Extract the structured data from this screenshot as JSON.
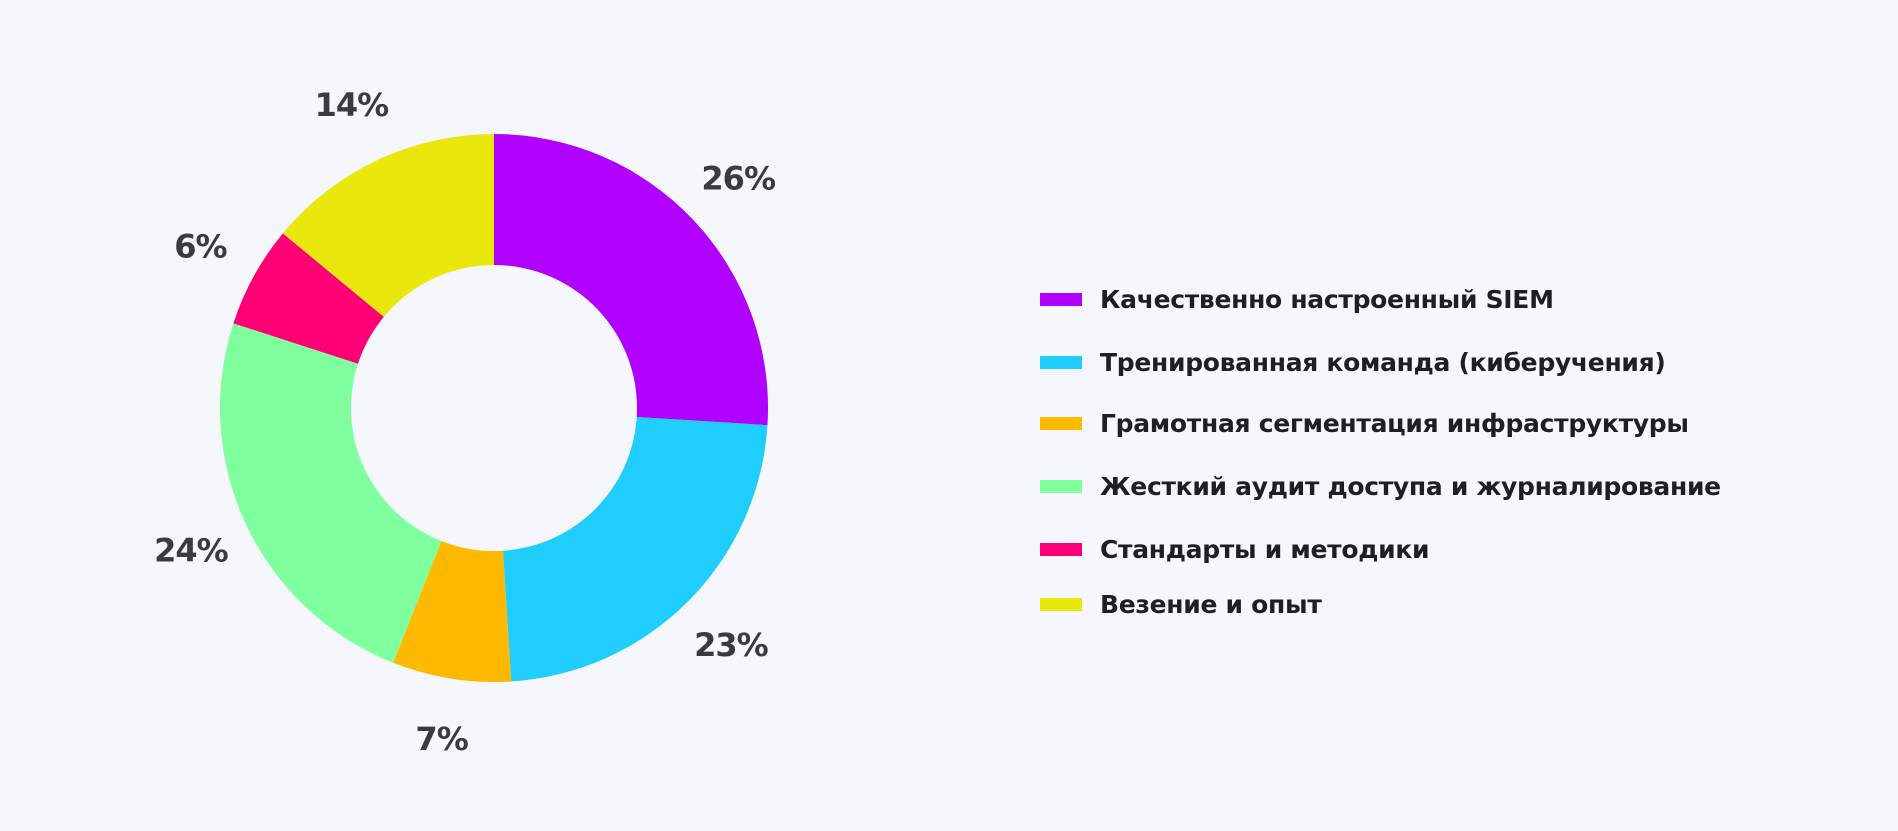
{
  "chart_data": {
    "type": "pie",
    "variant": "donut",
    "legend_position": "right",
    "slices": [
      {
        "label": "Качественно настроенный SIEM",
        "value": 26,
        "value_label": "26%",
        "color": "#b000ff"
      },
      {
        "label": "Тренированная команда (киберучения)",
        "value": 23,
        "value_label": "23%",
        "color": "#1fcdff"
      },
      {
        "label": "Грамотная сегментация инфраструктуры",
        "value": 7,
        "value_label": "7%",
        "color": "#ffba00"
      },
      {
        "label": "Жесткий аудит доступа и журналирование",
        "value": 24,
        "value_label": "24%",
        "color": "#80ff9f"
      },
      {
        "label": "Стандарты и методики",
        "value": 6,
        "value_label": "6%",
        "color": "#ff0074"
      },
      {
        "label": "Везение и опыт",
        "value": 14,
        "value_label": "14%",
        "color": "#eae70c"
      }
    ]
  }
}
